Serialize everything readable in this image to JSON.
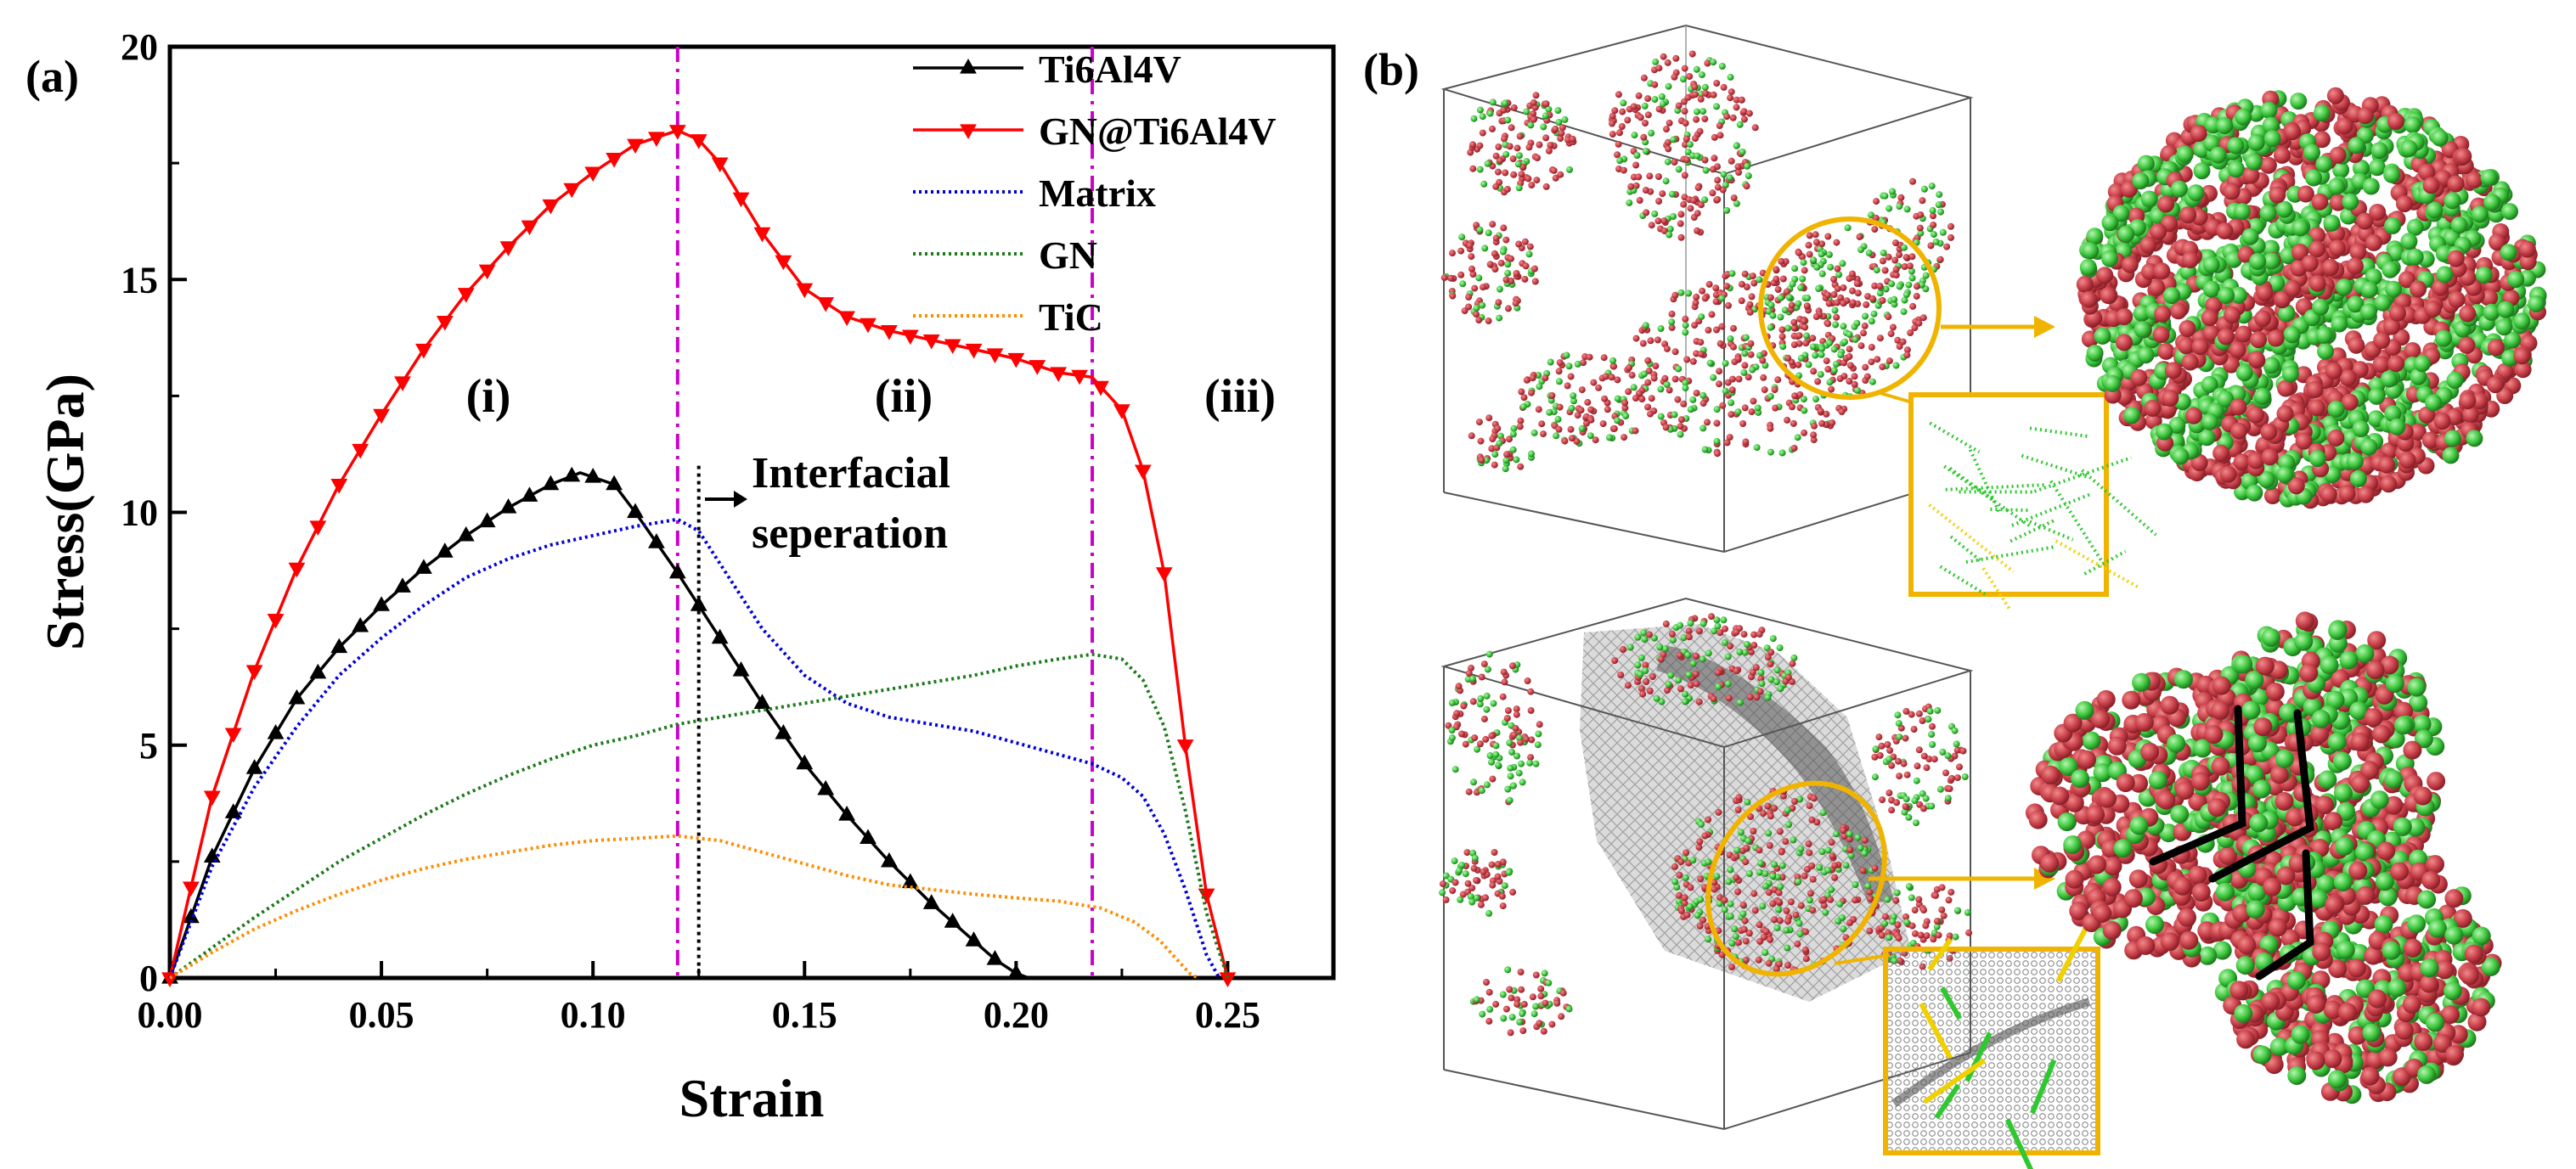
{
  "chart_data": {
    "type": "line",
    "panel_label": "(a)",
    "xlabel": "Strain",
    "ylabel": "Stress(GPa)",
    "xlim": [
      0,
      0.275
    ],
    "ylim": [
      0,
      20
    ],
    "xticks": [
      "0.00",
      "0.05",
      "0.10",
      "0.15",
      "0.20",
      "0.25"
    ],
    "yticks": [
      "0",
      "5",
      "10",
      "15",
      "20"
    ],
    "legend_position": "top-right",
    "series": [
      {
        "name": "Ti6Al4V",
        "color": "#000000",
        "dash": "",
        "marker": "triangle-up",
        "x": [
          0,
          0.01,
          0.02,
          0.03,
          0.04,
          0.05,
          0.06,
          0.07,
          0.08,
          0.09,
          0.097,
          0.105,
          0.11,
          0.12,
          0.13,
          0.14,
          0.15,
          0.16,
          0.17,
          0.18,
          0.19,
          0.195,
          0.2,
          0.203
        ],
        "y": [
          0,
          2.6,
          4.5,
          6.0,
          7.1,
          8.0,
          8.8,
          9.5,
          10.1,
          10.6,
          10.85,
          10.6,
          10.0,
          8.7,
          7.3,
          5.9,
          4.6,
          3.5,
          2.5,
          1.6,
          0.8,
          0.4,
          0.1,
          0
        ]
      },
      {
        "name": "GN@Ti6Al4V",
        "color": "#ff0000",
        "dash": "",
        "marker": "triangle-down",
        "x": [
          0,
          0.01,
          0.02,
          0.03,
          0.04,
          0.05,
          0.06,
          0.07,
          0.08,
          0.09,
          0.1,
          0.11,
          0.12,
          0.125,
          0.13,
          0.14,
          0.15,
          0.16,
          0.17,
          0.18,
          0.19,
          0.2,
          0.21,
          0.218,
          0.225,
          0.23,
          0.235,
          0.24,
          0.245,
          0.25
        ],
        "y": [
          0,
          3.9,
          6.6,
          8.8,
          10.6,
          12.1,
          13.5,
          14.7,
          15.7,
          16.6,
          17.3,
          17.9,
          18.2,
          18.0,
          17.5,
          16.0,
          14.8,
          14.2,
          13.9,
          13.7,
          13.5,
          13.3,
          13.0,
          12.9,
          12.2,
          10.9,
          8.7,
          5.0,
          1.8,
          0
        ]
      },
      {
        "name": "Matrix",
        "color": "#0000dd",
        "dash": "3,4",
        "marker": "none",
        "x": [
          0,
          0.01,
          0.02,
          0.03,
          0.04,
          0.05,
          0.06,
          0.07,
          0.08,
          0.09,
          0.1,
          0.11,
          0.12,
          0.125,
          0.13,
          0.14,
          0.15,
          0.16,
          0.17,
          0.18,
          0.19,
          0.2,
          0.21,
          0.218,
          0.225,
          0.23,
          0.235,
          0.24,
          0.245,
          0.248
        ],
        "y": [
          0,
          2.4,
          4.1,
          5.4,
          6.5,
          7.3,
          8.0,
          8.6,
          9.0,
          9.3,
          9.5,
          9.7,
          9.85,
          9.6,
          8.9,
          7.5,
          6.5,
          5.9,
          5.6,
          5.45,
          5.3,
          5.05,
          4.8,
          4.6,
          4.3,
          3.9,
          3.1,
          1.9,
          0.5,
          0
        ]
      },
      {
        "name": "GN",
        "color": "#1a7a1a",
        "dash": "3,4",
        "marker": "none",
        "x": [
          0,
          0.01,
          0.02,
          0.03,
          0.04,
          0.05,
          0.06,
          0.07,
          0.08,
          0.09,
          0.1,
          0.11,
          0.12,
          0.13,
          0.14,
          0.15,
          0.16,
          0.17,
          0.18,
          0.19,
          0.2,
          0.21,
          0.218,
          0.225,
          0.23,
          0.235,
          0.24,
          0.245,
          0.25
        ],
        "y": [
          0,
          0.65,
          1.3,
          1.9,
          2.5,
          3.0,
          3.5,
          3.95,
          4.35,
          4.7,
          5.0,
          5.2,
          5.45,
          5.6,
          5.75,
          5.9,
          6.05,
          6.2,
          6.35,
          6.5,
          6.7,
          6.85,
          6.95,
          6.85,
          6.4,
          5.4,
          3.6,
          1.4,
          0
        ]
      },
      {
        "name": "TiC",
        "color": "#ff8c00",
        "dash": "3,4",
        "marker": "none",
        "x": [
          0,
          0.01,
          0.02,
          0.03,
          0.04,
          0.05,
          0.06,
          0.07,
          0.08,
          0.09,
          0.1,
          0.11,
          0.12,
          0.13,
          0.14,
          0.15,
          0.16,
          0.17,
          0.18,
          0.19,
          0.2,
          0.21,
          0.22,
          0.228,
          0.234,
          0.238,
          0.241,
          0.243
        ],
        "y": [
          0,
          0.55,
          1.05,
          1.45,
          1.8,
          2.1,
          2.35,
          2.55,
          2.7,
          2.85,
          2.95,
          3.0,
          3.05,
          2.95,
          2.7,
          2.45,
          2.2,
          2.0,
          1.9,
          1.8,
          1.72,
          1.65,
          1.5,
          1.2,
          0.8,
          0.4,
          0.1,
          0
        ]
      }
    ],
    "vlines": [
      {
        "x": 0.12,
        "color": "#cc00cc",
        "style": "dashdot"
      },
      {
        "x": 0.218,
        "color": "#cc00cc",
        "style": "dashdot"
      },
      {
        "x": 0.125,
        "y_max": 11,
        "color": "#000000",
        "style": "dotted"
      }
    ],
    "annotations": {
      "region_1": "(i)",
      "region_2": "(ii)",
      "region_3": "(iii)",
      "interfacial_line1": "Interfacial",
      "interfacial_line2": "seperation"
    }
  },
  "panel_b": {
    "label": "(b)",
    "atom_colors": {
      "red": "#c8404a",
      "green": "#3ec83e",
      "callout": "#f0b400"
    }
  }
}
